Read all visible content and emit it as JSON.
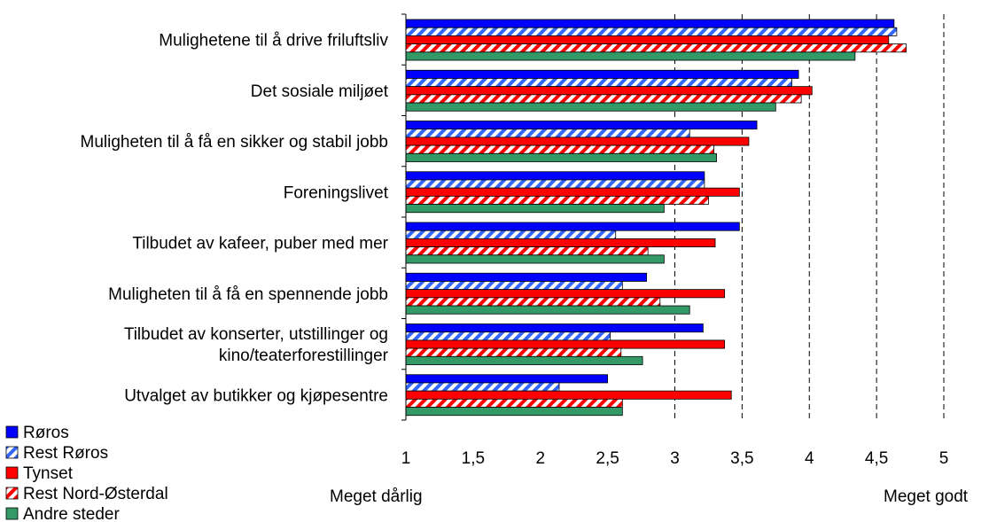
{
  "chart_data": {
    "type": "bar",
    "orientation": "horizontal",
    "categories": [
      "Mulighetene til å drive friluftsliv",
      "Det sosiale miljøet",
      "Muligheten til å få en sikker og stabil jobb",
      "Foreningslivet",
      "Tilbudet av kafeer, puber med mer",
      "Muligheten til å få en spennende jobb",
      "Tilbudet av konserter, utstillinger og kino/teaterforestillinger",
      "Utvalget av butikker og kjøpesentre"
    ],
    "category_lines": [
      [
        "Mulighetene til å drive friluftsliv"
      ],
      [
        "Det sosiale miljøet"
      ],
      [
        "Muligheten til å få en sikker og stabil jobb"
      ],
      [
        "Foreningslivet"
      ],
      [
        "Tilbudet av kafeer, puber med mer"
      ],
      [
        "Muligheten til å få en spennende jobb"
      ],
      [
        "Tilbudet av konserter, utstillinger og",
        "kino/teaterforestillinger"
      ],
      [
        "Utvalget av butikker og kjøpesentre"
      ]
    ],
    "series": [
      {
        "name": "Røros",
        "color": "#0000ff",
        "pattern": "solid",
        "values": [
          4.63,
          3.92,
          3.61,
          3.22,
          3.48,
          2.79,
          3.21,
          2.5
        ]
      },
      {
        "name": "Rest Røros",
        "color": "#3366ff",
        "pattern": "diagonal-stripes",
        "values": [
          4.65,
          3.87,
          3.11,
          3.22,
          2.56,
          2.61,
          2.52,
          2.14
        ]
      },
      {
        "name": "Tynset",
        "color": "#ff0000",
        "pattern": "solid",
        "values": [
          4.59,
          4.02,
          3.55,
          3.48,
          3.3,
          3.37,
          3.37,
          3.42
        ]
      },
      {
        "name": "Rest Nord-Østerdal",
        "color": "#ff0000",
        "pattern": "diagonal-stripes",
        "values": [
          4.72,
          3.94,
          3.29,
          3.25,
          2.8,
          2.89,
          2.6,
          2.61
        ]
      },
      {
        "name": "Andre steder",
        "color": "#339966",
        "pattern": "solid",
        "values": [
          4.34,
          3.75,
          3.31,
          2.92,
          2.92,
          3.11,
          2.76,
          2.61
        ]
      }
    ],
    "xlim": [
      1,
      5
    ],
    "xticks": [
      1,
      1.5,
      2,
      2.5,
      3,
      3.5,
      4,
      4.5,
      5
    ],
    "xtick_labels": [
      "1",
      "1,5",
      "2",
      "2,5",
      "3",
      "3,5",
      "4",
      "4,5",
      "5"
    ],
    "x_min_label": "Meget dårlig",
    "x_max_label": "Meget godt",
    "grid": "vertical dashed at 3, 3.5, 4, 4.5, 5",
    "legend_position": "bottom-left"
  }
}
